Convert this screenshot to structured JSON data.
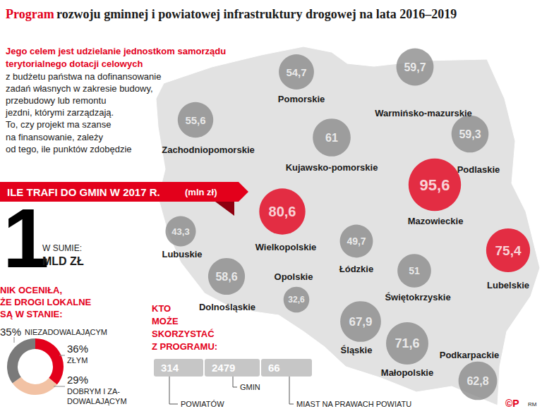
{
  "header": {
    "title_highlight": "Program",
    "title": "rozwoju gminnej i powiatowej infrastruktury drogowej na lata 2016–2019"
  },
  "intro": {
    "highlight_lines": [
      "Jego celem jest udzielanie jednostkom samorządu",
      "terytorialnego dotacji celowych"
    ],
    "lines": [
      "z budżetu państwa na dofinansowanie",
      "zadań własnych w zakresie budowy,",
      "przebudowy lub remontu",
      "jezdni, którymi zarządzają.",
      "To, czy projekt ma szanse",
      "na finansowanie, zależy",
      "od tego, ile punktów zdobędzie"
    ]
  },
  "banner": {
    "text": "ILE TRAFI DO GMIN W 2017 R.",
    "unit": "(mln zł)"
  },
  "total": {
    "value": 1,
    "prefix": "W SUMIE:",
    "unit": "MLD ZŁ"
  },
  "map": {
    "type": "bubble_map",
    "regions": [
      "Pomorskie",
      "Warmińsko-mazurskie",
      "Zachodniopomorskie",
      "Kujawsko-pomorskie",
      "Podlaskie",
      "Mazowieckie",
      "Wielkopolskie",
      "Lubuskie",
      "Lubelskie",
      "Łódzkie",
      "Opolskie",
      "Dolnośląskie",
      "Świętokrzyskie",
      "Śląskie",
      "Małopolskie",
      "Podkarpackie"
    ],
    "values": [
      54.7,
      59.7,
      55.6,
      61,
      59.3,
      95.6,
      80.6,
      43.3,
      75.4,
      49.7,
      32.6,
      58.6,
      51,
      67.9,
      71.6,
      62.8
    ],
    "value_labels": [
      "54,7",
      "59,7",
      "55,6",
      "61",
      "59,3",
      "95,6",
      "80,6",
      "43,3",
      "75,4",
      "49,7",
      "32,6",
      "58,6",
      "51",
      "67,9",
      "71,6",
      "62,8"
    ],
    "colors": [
      "#8c8c8c",
      "#8c8c8c",
      "#8c8c8c",
      "#8c8c8c",
      "#8c8c8c",
      "#e3001b",
      "#e3001b",
      "#8c8c8c",
      "#e3001b",
      "#8c8c8c",
      "#8c8c8c",
      "#8c8c8c",
      "#8c8c8c",
      "#8c8c8c",
      "#8c8c8c",
      "#8c8c8c"
    ]
  },
  "chart_data": {
    "type": "pie",
    "title": "NIK OCENIŁA,\nŻE DROGI LOKALNE\nSĄ W STANIE:",
    "categories": [
      "ZŁYM",
      "DOBRYM I ZA-\nDOWALAJĄCYM",
      "NIEZADOWALAJĄCYM"
    ],
    "values": [
      36,
      29,
      35
    ],
    "value_labels": [
      "36%",
      "29%",
      "35%"
    ],
    "colors": [
      "#e3001b",
      "#f2c2a4",
      "#7a7a7a"
    ]
  },
  "eligible": {
    "title": "KTO\nMOŻE\nSKORZYSTAĆ\nZ PROGRAMU:",
    "values": [
      314,
      2479,
      66
    ],
    "categories": [
      "POWIATÓW",
      "GMIN",
      "MIAST NA PRAWACH POWIATU"
    ]
  },
  "logo": "©P",
  "credit": "RM"
}
